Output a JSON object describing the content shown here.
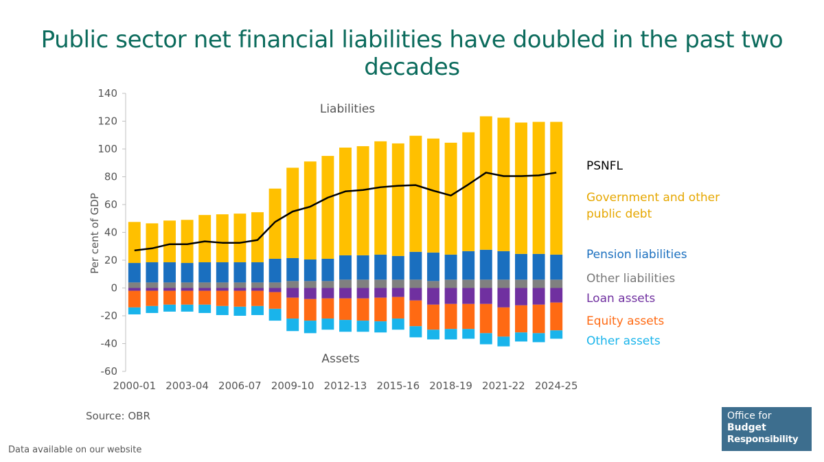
{
  "title": "Public sector net financial liabilities have doubled in the past two decades",
  "source": "Source: OBR",
  "footer": "Data available on our website",
  "logo": {
    "line1": "Office for",
    "line2": "Budget",
    "line3": "Responsibility"
  },
  "legend": {
    "psnfl": "PSNFL",
    "gov_debt_line1": "Government and other",
    "gov_debt_line2": "public debt",
    "pension": "Pension liabilities",
    "other_liabilities": "Other liabilities",
    "loan_assets": "Loan assets",
    "equity_assets": "Equity assets",
    "other_assets": "Other assets"
  },
  "colors": {
    "title": "#0b6b5c",
    "gov_debt": "#ffc000",
    "pension": "#1a6fbf",
    "other_liabilities": "#808080",
    "loan_assets": "#7030a0",
    "equity_assets": "#ff6a13",
    "other_assets": "#19b4eb",
    "psnfl": "#000000",
    "logo_bg": "#3d6e8e"
  },
  "chart_data": {
    "type": "bar",
    "stacked": true,
    "annotations": {
      "top": "Liabilities",
      "bottom": "Assets"
    },
    "ylabel": "Per cent of GDP",
    "ylim": [
      -60,
      140
    ],
    "yticks": [
      -60,
      -40,
      -20,
      0,
      20,
      40,
      60,
      80,
      100,
      120,
      140
    ],
    "categories": [
      "2000-01",
      "2001-02",
      "2002-03",
      "2003-04",
      "2004-05",
      "2005-06",
      "2006-07",
      "2007-08",
      "2008-09",
      "2009-10",
      "2010-11",
      "2011-12",
      "2012-13",
      "2013-14",
      "2014-15",
      "2015-16",
      "2016-17",
      "2017-18",
      "2018-19",
      "2019-20",
      "2020-21",
      "2021-22",
      "2022-23",
      "2023-24",
      "2024-25"
    ],
    "tick_labels": [
      "2000-01",
      "2003-04",
      "2006-07",
      "2009-10",
      "2012-13",
      "2015-16",
      "2018-19",
      "2021-22",
      "2024-25"
    ],
    "series": [
      {
        "name": "Other liabilities",
        "key": "other_liabilities",
        "values": [
          4,
          4,
          4,
          4,
          4,
          4,
          4,
          4,
          4,
          5,
          5,
          5,
          6,
          6,
          6,
          6,
          6,
          5,
          6,
          6,
          6,
          6,
          6,
          6,
          6
        ]
      },
      {
        "name": "Pension liabilities",
        "key": "pension",
        "values": [
          14,
          14.5,
          14.5,
          14,
          14.5,
          14.5,
          14.5,
          14.5,
          17,
          16.5,
          15.5,
          16,
          17.5,
          17.5,
          18,
          17,
          20,
          20.5,
          18,
          20.5,
          21.5,
          20.5,
          18.5,
          18.5,
          18
        ]
      },
      {
        "name": "Government and other public debt",
        "key": "gov_debt",
        "values": [
          29.5,
          28,
          30,
          31,
          34,
          34.5,
          35,
          36,
          50.5,
          65,
          70.5,
          74,
          77.5,
          78.5,
          81.5,
          81,
          83.5,
          82,
          80.5,
          85.5,
          96,
          96,
          94.5,
          95,
          95.5
        ]
      },
      {
        "name": "Loan assets",
        "key": "loan_assets",
        "values": [
          -2,
          -2,
          -2,
          -2,
          -2,
          -2,
          -2,
          -2,
          -3,
          -7,
          -8,
          -7.5,
          -7.5,
          -7.5,
          -7,
          -6.5,
          -9,
          -12,
          -11.5,
          -11.5,
          -11.5,
          -14,
          -12.5,
          -12,
          -10.5
        ]
      },
      {
        "name": "Equity assets",
        "key": "equity_assets",
        "values": [
          -12,
          -11,
          -10,
          -10,
          -10,
          -11,
          -11.5,
          -11,
          -12,
          -15,
          -15.5,
          -14.5,
          -15.5,
          -16,
          -17,
          -15.5,
          -18.5,
          -18,
          -18,
          -18,
          -21,
          -21,
          -19.5,
          -20.5,
          -20
        ]
      },
      {
        "name": "Other assets",
        "key": "other_assets",
        "values": [
          -5,
          -5,
          -5,
          -5,
          -6,
          -6.5,
          -6.5,
          -6.5,
          -8.5,
          -9,
          -9,
          -8,
          -8.5,
          -8,
          -8,
          -8,
          -8,
          -7,
          -7.5,
          -7,
          -8,
          -7,
          -6.5,
          -6.5,
          -6
        ]
      },
      {
        "name": "PSNFL",
        "key": "psnfl",
        "type": "line",
        "values": [
          27,
          28.5,
          31.5,
          31.5,
          33.5,
          32.5,
          32.5,
          34.5,
          47.5,
          55,
          58.5,
          65,
          69.5,
          70.5,
          72.5,
          73.5,
          74,
          70,
          66.5,
          74.5,
          83,
          80.5,
          80.5,
          81,
          83
        ]
      }
    ]
  }
}
